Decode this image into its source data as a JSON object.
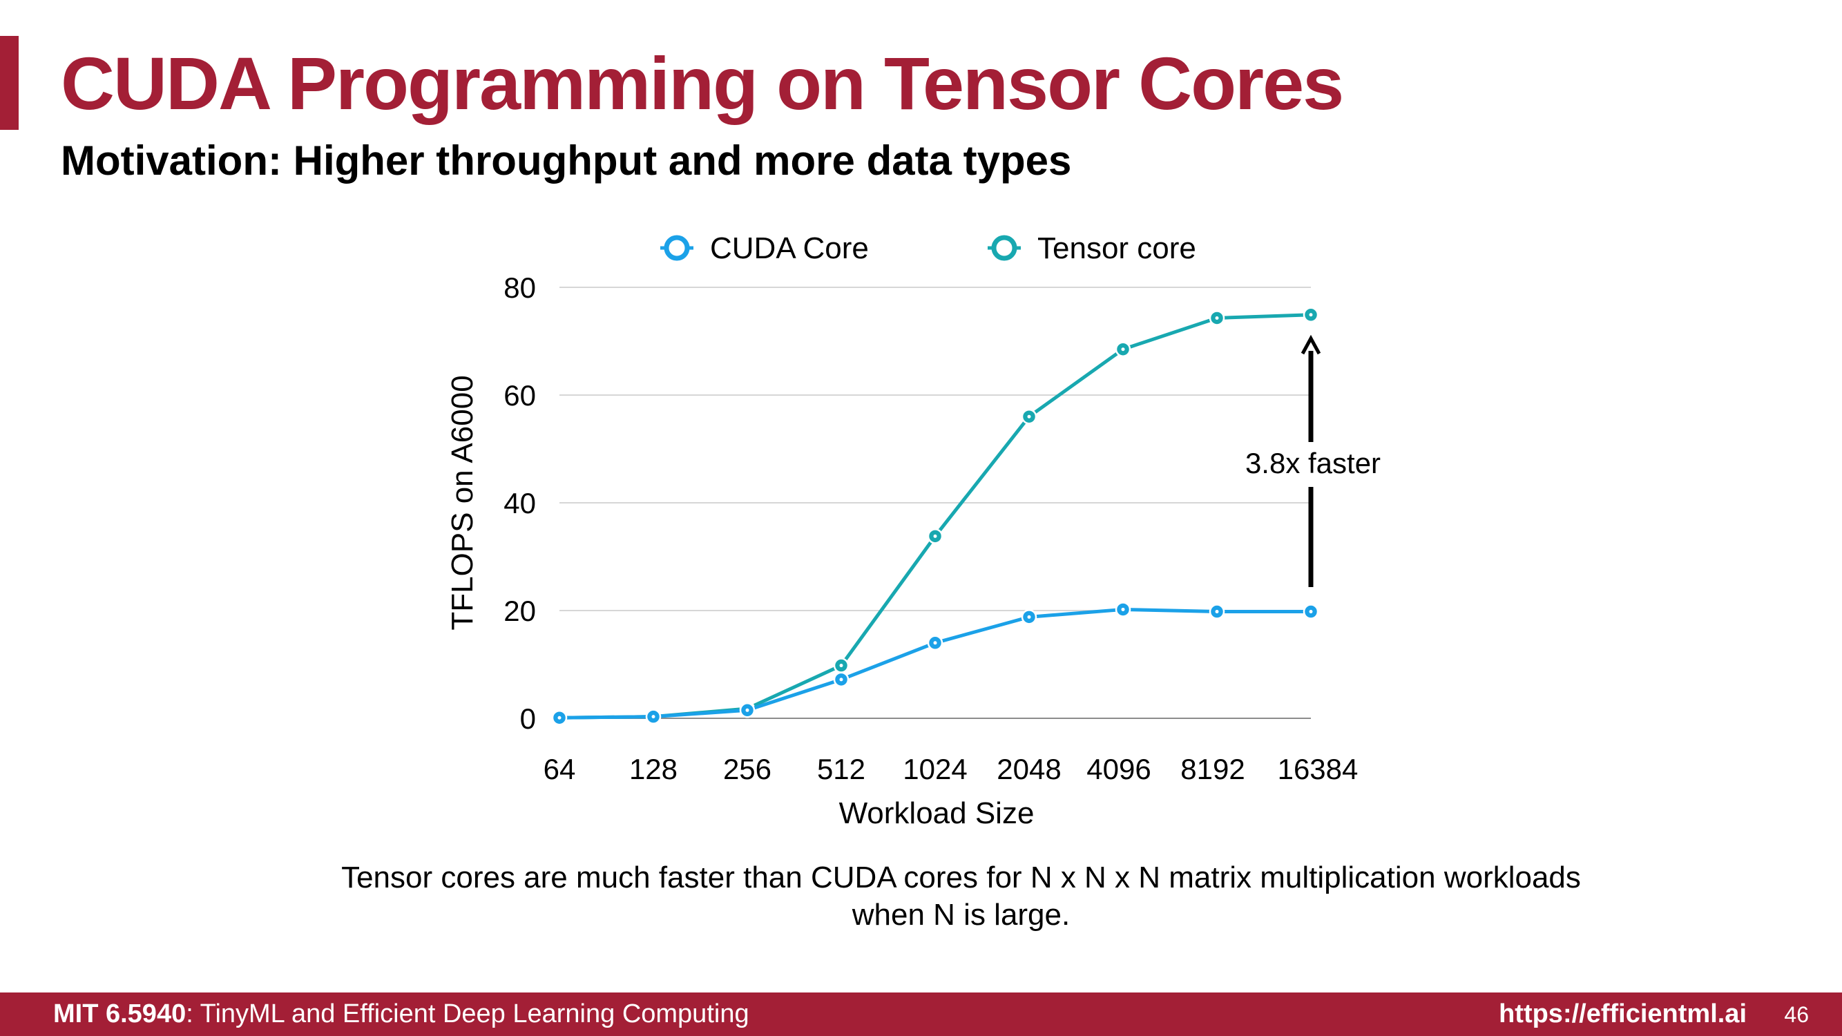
{
  "slide": {
    "title": "CUDA Programming on Tensor Cores",
    "subtitle": "Motivation: Higher throughput and more data types",
    "caption_line1": "Tensor cores are much faster than CUDA cores for N x N x N matrix multiplication workloads",
    "caption_line2": "when N is large.",
    "footer_course": "MIT 6.5940",
    "footer_course_name": ": TinyML and Efficient Deep Learning Computing",
    "footer_url": "https://efficientml.ai",
    "page_number": "46",
    "accent_color": "#a31f36"
  },
  "chart_data": {
    "type": "line",
    "categories": [
      "64",
      "128",
      "256",
      "512",
      "1024",
      "2048",
      "4096",
      "8192",
      "16384"
    ],
    "series": [
      {
        "name": "CUDA Core",
        "color": "#1ba1e8",
        "values": [
          0.1,
          0.3,
          1.5,
          7.2,
          14,
          18.8,
          20.2,
          19.8,
          19.8
        ]
      },
      {
        "name": "Tensor core",
        "color": "#18a8b0",
        "values": [
          0.1,
          0.3,
          1.8,
          9.8,
          33.8,
          56,
          68.5,
          74.3,
          74.9
        ]
      }
    ],
    "xlabel": "Workload Size",
    "ylabel": "TFLOPS on A6000",
    "ylim": [
      0,
      80
    ],
    "yticks": [
      0,
      20,
      40,
      60,
      80
    ],
    "grid": "horizontal",
    "legend": "top",
    "annotation": {
      "text": "3.8x faster",
      "category": "16384",
      "from_value": 19.8,
      "to_value": 74.9
    }
  }
}
